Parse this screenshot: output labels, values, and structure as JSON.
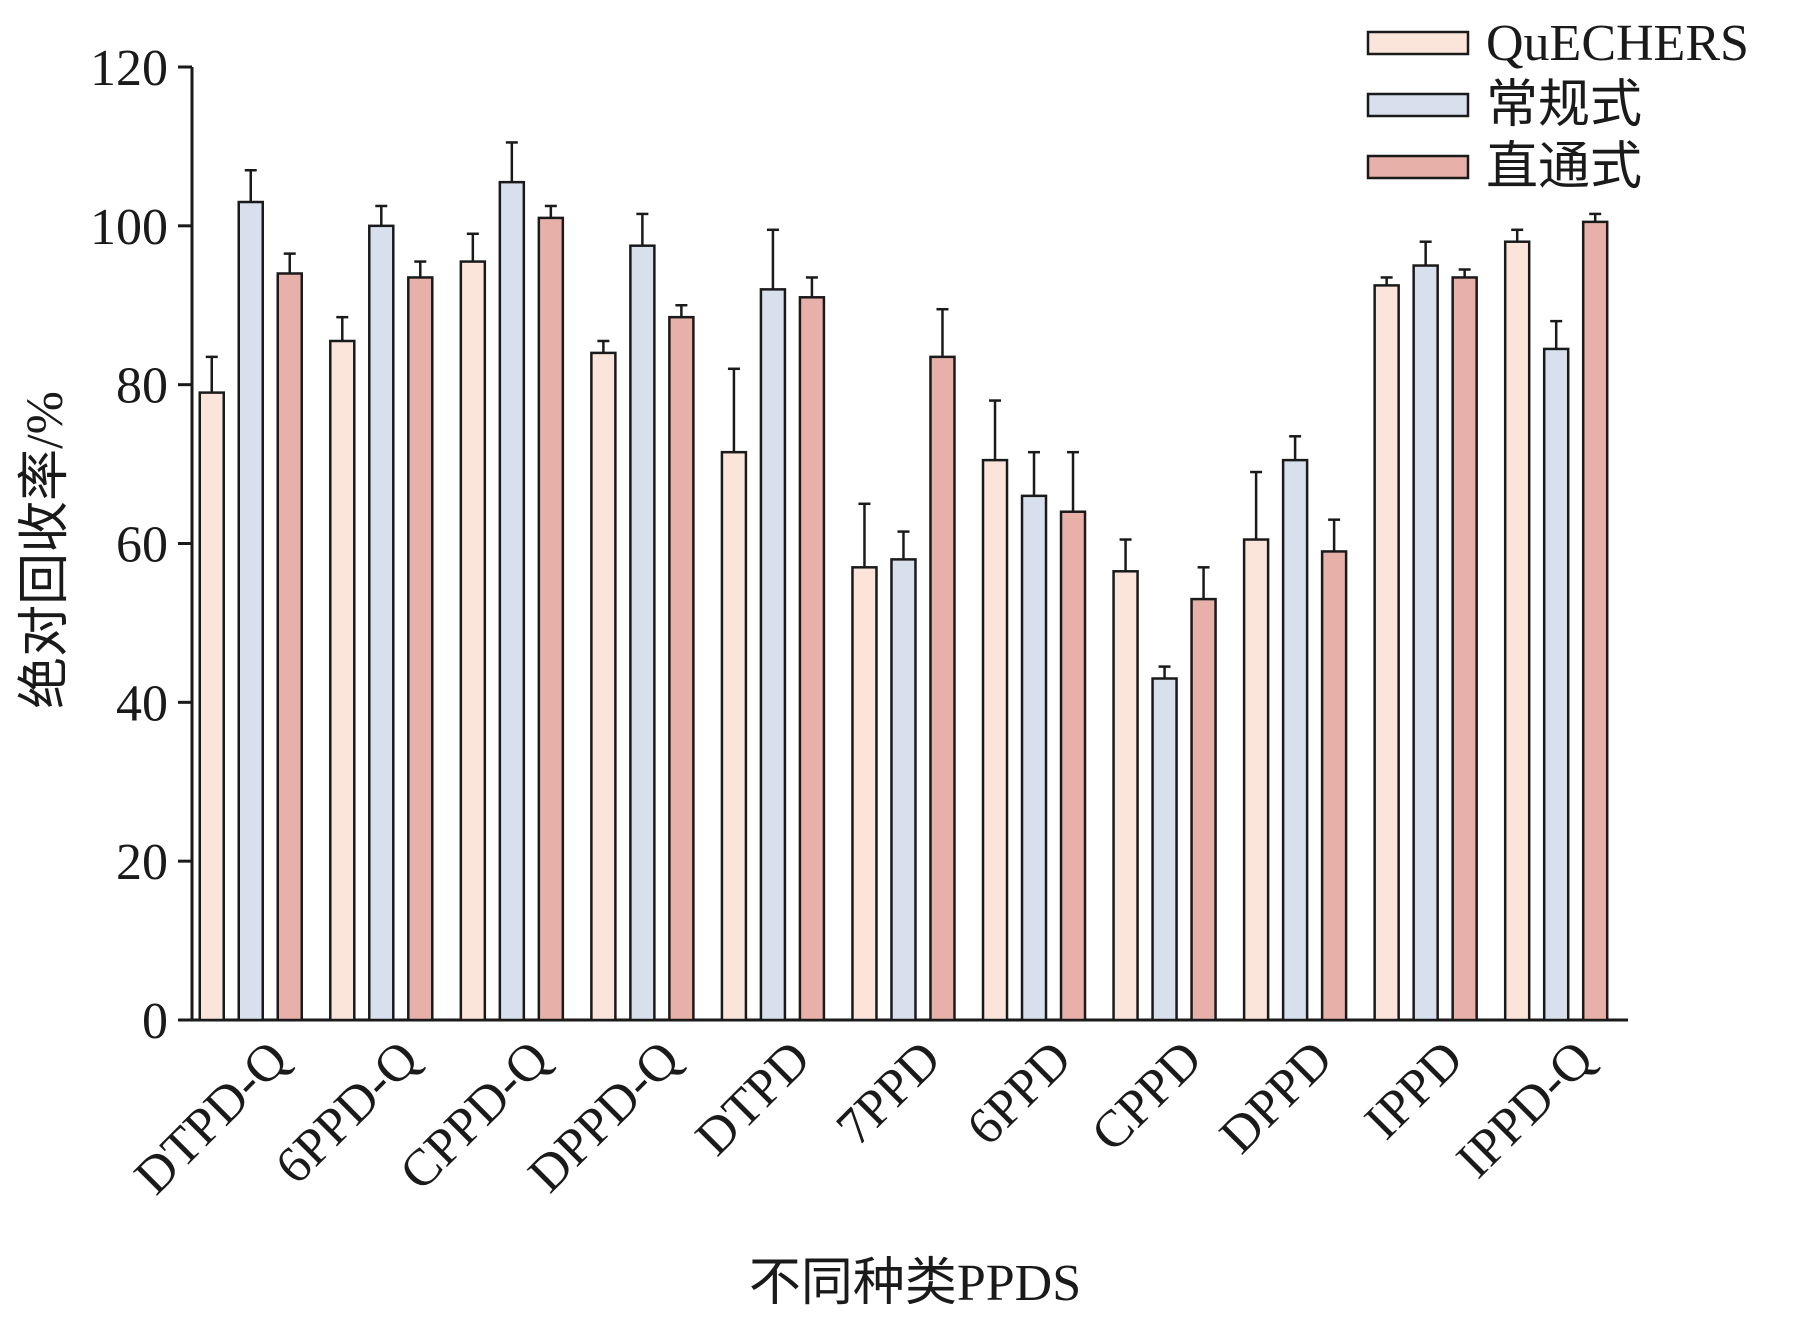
{
  "chart_data": {
    "type": "bar",
    "title": "",
    "xlabel": "不同种类PPDS",
    "ylabel": "绝对回收率/%",
    "ylim": [
      0,
      120
    ],
    "yticks": [
      0,
      20,
      40,
      60,
      80,
      100,
      120
    ],
    "grid": false,
    "legend_position": "top-right",
    "error_bars": true,
    "categories": [
      "DTPD-Q",
      "6PPD-Q",
      "CPPD-Q",
      "DPPD-Q",
      "DTPD",
      "7PPD",
      "6PPD",
      "CPPD",
      "DPPD",
      "IPPD",
      "IPPD-Q"
    ],
    "series": [
      {
        "name": "QuECHERS",
        "color": "#fbe4da",
        "values": [
          79.0,
          85.5,
          95.5,
          84.0,
          71.5,
          57.0,
          70.5,
          56.5,
          60.5,
          92.5,
          98.0
        ],
        "errors": [
          4.5,
          3.0,
          3.5,
          1.5,
          10.5,
          8.0,
          7.5,
          4.0,
          8.5,
          1.0,
          1.5
        ]
      },
      {
        "name": "常规式",
        "color": "#d8e0ee",
        "values": [
          103.0,
          100.0,
          105.5,
          97.5,
          92.0,
          58.0,
          66.0,
          43.0,
          70.5,
          95.0,
          84.5
        ],
        "errors": [
          4.0,
          2.5,
          5.0,
          4.0,
          7.5,
          3.5,
          5.5,
          1.5,
          3.0,
          3.0,
          3.5
        ]
      },
      {
        "name": "直通式",
        "color": "#e7b0a9",
        "values": [
          94.0,
          93.5,
          101.0,
          88.5,
          91.0,
          83.5,
          64.0,
          53.0,
          59.0,
          93.5,
          100.5
        ],
        "errors": [
          2.5,
          2.0,
          1.5,
          1.5,
          2.5,
          6.0,
          7.5,
          4.0,
          4.0,
          1.0,
          1.0
        ]
      }
    ]
  }
}
